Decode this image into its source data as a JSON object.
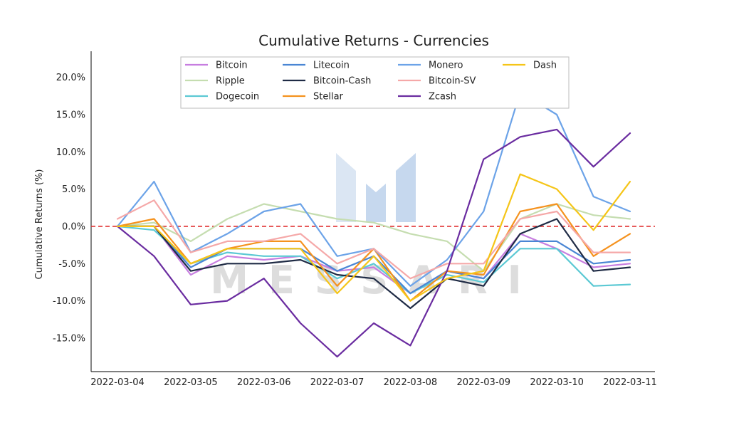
{
  "chart_data": {
    "type": "line",
    "title": "Cumulative Returns - Currencies",
    "xlabel": "",
    "ylabel": "Cumulative Returns (%)",
    "x_ticks": [
      "2022-03-04",
      "2022-03-05",
      "2022-03-06",
      "2022-03-07",
      "2022-03-08",
      "2022-03-09",
      "2022-03-10",
      "2022-03-11"
    ],
    "xlim": [
      "2022-03-04",
      "2022-03-11"
    ],
    "y_ticks": [
      "20.0%",
      "15.0%",
      "10.0%",
      "5.0%",
      "0.0%",
      "-5.0%",
      "-10.0%",
      "-15.0%"
    ],
    "y_tick_values": [
      20,
      15,
      10,
      5,
      0,
      -5,
      -10,
      -15
    ],
    "ylim": [
      -19.5,
      23.5
    ],
    "reference_line": {
      "y": 0,
      "color": "#e03030",
      "style": "dashed"
    },
    "watermark": "MESSARI",
    "legend_position": "top-center",
    "legend_columns": 4,
    "x_dates": [
      "2022-03-04",
      "2022-03-04 12:00",
      "2022-03-05",
      "2022-03-05 12:00",
      "2022-03-06",
      "2022-03-06 12:00",
      "2022-03-07",
      "2022-03-07 12:00",
      "2022-03-08",
      "2022-03-08 12:00",
      "2022-03-09",
      "2022-03-09 12:00",
      "2022-03-10",
      "2022-03-10 12:00",
      "2022-03-11"
    ],
    "series": [
      {
        "name": "Bitcoin",
        "color": "#c77ee0",
        "values": [
          0,
          0,
          -6.5,
          -4,
          -4.5,
          -4,
          -6,
          -5.5,
          -9,
          -6,
          -7,
          -1,
          -3,
          -5.5,
          -5
        ]
      },
      {
        "name": "Ripple",
        "color": "#c5ddb0",
        "values": [
          0,
          0.5,
          -2,
          1,
          3,
          2,
          1,
          0.5,
          -1,
          -2,
          -6,
          1,
          3,
          1.5,
          1
        ]
      },
      {
        "name": "Dogecoin",
        "color": "#5cc9d4",
        "values": [
          0,
          -0.5,
          -5,
          -3.5,
          -4,
          -4,
          -7,
          -5,
          -9,
          -6.5,
          -7.5,
          -3,
          -3,
          -8,
          -7.8
        ]
      },
      {
        "name": "Litecoin",
        "color": "#4a86d4",
        "values": [
          0,
          0,
          -5.5,
          -3,
          -3,
          -3,
          -6,
          -4,
          -9,
          -6,
          -7,
          -2,
          -2,
          -5,
          -4.5
        ]
      },
      {
        "name": "Bitcoin-Cash",
        "color": "#1f2b45",
        "values": [
          0,
          0,
          -6,
          -5,
          -5,
          -4.5,
          -6.5,
          -7,
          -11,
          -7,
          -8,
          -1,
          1,
          -6,
          -5.5
        ]
      },
      {
        "name": "Stellar",
        "color": "#f5921e",
        "values": [
          0,
          1,
          -5,
          -3,
          -2,
          -2,
          -8,
          -3,
          -10,
          -6,
          -6.5,
          2,
          3,
          -4,
          -1
        ]
      },
      {
        "name": "Monero",
        "color": "#6ca3e8",
        "values": [
          0,
          6,
          -3.5,
          -1,
          2,
          3,
          -4,
          -3,
          -8,
          -4.5,
          2,
          18,
          15,
          4,
          2
        ]
      },
      {
        "name": "Bitcoin-SV",
        "color": "#f5a8a8",
        "values": [
          1,
          3.5,
          -3.5,
          -2,
          -2,
          -1,
          -5,
          -3,
          -7,
          -5,
          -5,
          1,
          2,
          -3.5,
          -3.5
        ]
      },
      {
        "name": "Zcash",
        "color": "#6a2ca0",
        "values": [
          0,
          -4,
          -10.5,
          -10,
          -7,
          -13,
          -17.5,
          -13,
          -16,
          -6,
          9,
          12,
          13,
          8,
          12.5
        ]
      },
      {
        "name": "Dash",
        "color": "#f5c518",
        "values": [
          0,
          0,
          -5,
          -3,
          -3,
          -3,
          -9,
          -4,
          -10,
          -7,
          -6,
          7,
          5,
          -0.5,
          6
        ]
      }
    ]
  }
}
